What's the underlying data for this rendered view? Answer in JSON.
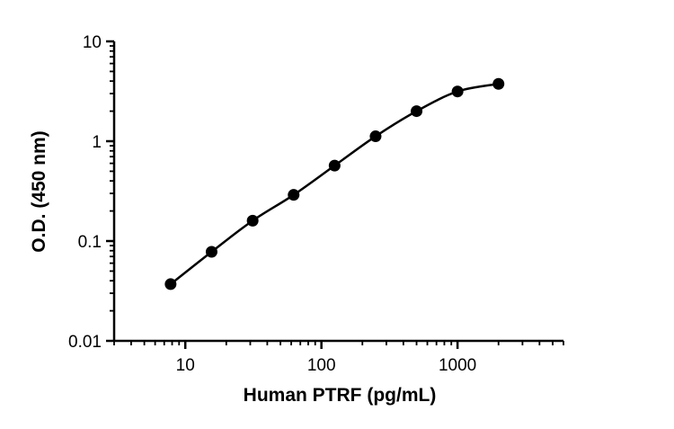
{
  "chart_data": {
    "type": "scatter",
    "xlabel": "Human PTRF (pg/mL)",
    "ylabel": "O.D. (450 nm)",
    "x_scale": "log",
    "y_scale": "log",
    "xlim": [
      3,
      6000
    ],
    "ylim": [
      0.01,
      10
    ],
    "x_ticks": [
      10,
      100,
      1000
    ],
    "x_tick_labels": [
      "10",
      "100",
      "1000"
    ],
    "y_ticks": [
      0.01,
      0.1,
      1,
      10
    ],
    "y_tick_labels": [
      "0.01",
      "0.1",
      "1",
      "10"
    ],
    "grid": false,
    "legend": "none",
    "series": [
      {
        "x": [
          7.8,
          15.6,
          31.25,
          62.5,
          125,
          250,
          500,
          1000,
          2000
        ],
        "y": [
          0.037,
          0.078,
          0.16,
          0.29,
          0.57,
          1.12,
          2.0,
          3.15,
          3.75
        ],
        "marker": "circle",
        "fit_curve": true,
        "color": "#000000"
      }
    ]
  }
}
